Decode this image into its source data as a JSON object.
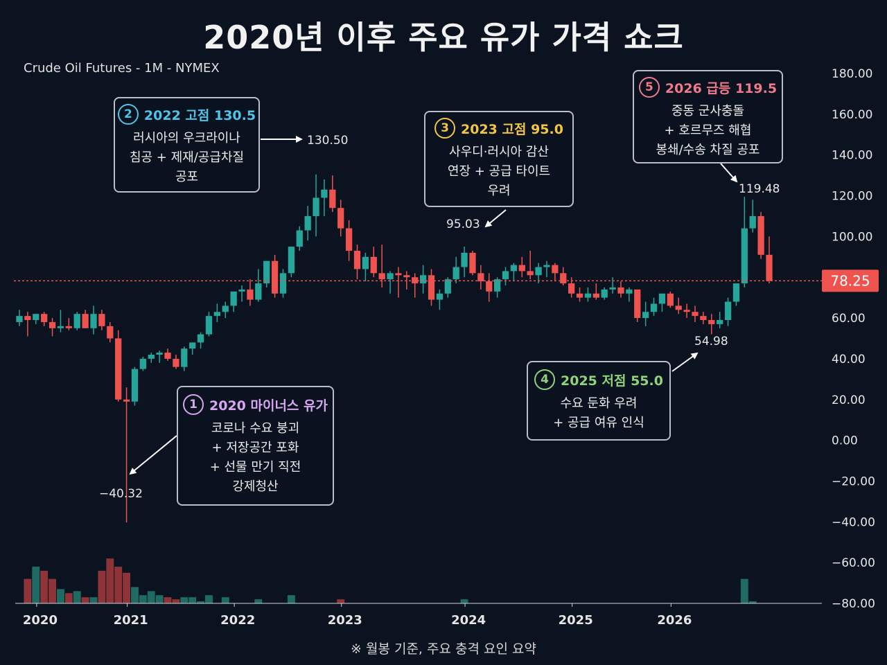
{
  "title": "2020년 이후 주요 유가 가격 쇼크",
  "subtitle": "Crude Oil Futures - 1M - NYMEX",
  "footer": "※ 월봉 기준, 주요 충격 요인 요약",
  "colors": {
    "background": "#0b1220",
    "up": "#26a69a",
    "down": "#ef5350",
    "vol_up": "#1f6b64",
    "vol_down": "#8e3337",
    "last_price": "#ef5350"
  },
  "annotations": [
    {
      "num": "1",
      "title": "2020 마이너스 유가",
      "color": "#d7a6f0",
      "lines": [
        "코로나 수요 붕괴",
        "+ 저장공간 포화",
        "+ 선물 만기 직전",
        "강제청산"
      ]
    },
    {
      "num": "2",
      "title": "2022 고점 130.5",
      "color": "#4fc3e8",
      "lines": [
        "러시아의 우크라이나",
        "침공 + 제재/공급차질",
        "공포"
      ]
    },
    {
      "num": "3",
      "title": "2023 고점 95.0",
      "color": "#f4c542",
      "lines": [
        "사우디·러시아 감산",
        "연장 + 공급 타이트",
        "우려"
      ]
    },
    {
      "num": "4",
      "title": "2025 저점 55.0",
      "color": "#8fd47a",
      "lines": [
        "수요 둔화 우려",
        "+ 공급 여유 인식"
      ]
    },
    {
      "num": "5",
      "title": "2026 급등 119.5",
      "color": "#f07a8a",
      "lines": [
        "중동 군사충돌",
        "+ 호르무즈 해협",
        "봉쇄/수송 차질 공포"
      ]
    }
  ],
  "chart_data": {
    "type": "candlestick",
    "title": "2020년 이후 주요 유가 가격 쇼크",
    "subtitle": "Crude Oil Futures - 1M - NYMEX",
    "x_axis_labels": [
      "2020",
      "2021",
      "2022",
      "2023",
      "2024",
      "2025",
      "2026"
    ],
    "y_ticks": [
      "180.00",
      "160.00",
      "140.00",
      "120.00",
      "100.00",
      "80.00",
      "60.00",
      "40.00",
      "20.00",
      "0.00",
      "−20.00",
      "−40.00",
      "−60.00",
      "−80.00"
    ],
    "ylim": [
      -80,
      180
    ],
    "last_price": "78.25",
    "price_labels": [
      "130.50",
      "95.03",
      "119.48",
      "54.98",
      "−40.32"
    ],
    "grid": false,
    "candles": [
      {
        "o": 58,
        "h": 64,
        "l": 56,
        "c": 61
      },
      {
        "o": 61,
        "h": 63,
        "l": 51,
        "c": 59
      },
      {
        "o": 59,
        "h": 62,
        "l": 57,
        "c": 62
      },
      {
        "o": 62,
        "h": 63,
        "l": 56,
        "c": 58
      },
      {
        "o": 58,
        "h": 60,
        "l": 51,
        "c": 55
      },
      {
        "o": 55,
        "h": 64,
        "l": 53,
        "c": 56
      },
      {
        "o": 56,
        "h": 60,
        "l": 54,
        "c": 55
      },
      {
        "o": 55,
        "h": 63,
        "l": 54,
        "c": 62
      },
      {
        "o": 62,
        "h": 64,
        "l": 55,
        "c": 55
      },
      {
        "o": 55,
        "h": 66,
        "l": 52,
        "c": 62
      },
      {
        "o": 62,
        "h": 64,
        "l": 54,
        "c": 56
      },
      {
        "o": 56,
        "h": 58,
        "l": 48,
        "c": 50
      },
      {
        "o": 50,
        "h": 54,
        "l": 19,
        "c": 20
      },
      {
        "o": 20,
        "h": 26,
        "l": -40.32,
        "c": 19
      },
      {
        "o": 19,
        "h": 36,
        "l": 17,
        "c": 35
      },
      {
        "o": 35,
        "h": 41,
        "l": 34,
        "c": 40
      },
      {
        "o": 40,
        "h": 43,
        "l": 38,
        "c": 42
      },
      {
        "o": 42,
        "h": 44,
        "l": 38,
        "c": 43
      },
      {
        "o": 43,
        "h": 45,
        "l": 39,
        "c": 40
      },
      {
        "o": 40,
        "h": 42,
        "l": 35,
        "c": 36
      },
      {
        "o": 36,
        "h": 46,
        "l": 34,
        "c": 45
      },
      {
        "o": 45,
        "h": 48,
        "l": 42,
        "c": 48
      },
      {
        "o": 48,
        "h": 53,
        "l": 45,
        "c": 52
      },
      {
        "o": 52,
        "h": 63,
        "l": 51,
        "c": 61
      },
      {
        "o": 61,
        "h": 67,
        "l": 58,
        "c": 63
      },
      {
        "o": 63,
        "h": 68,
        "l": 60,
        "c": 66
      },
      {
        "o": 66,
        "h": 73,
        "l": 63,
        "c": 73
      },
      {
        "o": 73,
        "h": 76,
        "l": 68,
        "c": 74
      },
      {
        "o": 74,
        "h": 79,
        "l": 66,
        "c": 69
      },
      {
        "o": 69,
        "h": 84,
        "l": 68,
        "c": 77
      },
      {
        "o": 77,
        "h": 88,
        "l": 75,
        "c": 88
      },
      {
        "o": 88,
        "h": 91,
        "l": 70,
        "c": 72
      },
      {
        "o": 72,
        "h": 84,
        "l": 70,
        "c": 82
      },
      {
        "o": 82,
        "h": 95,
        "l": 80,
        "c": 95
      },
      {
        "o": 95,
        "h": 105,
        "l": 93,
        "c": 103
      },
      {
        "o": 103,
        "h": 115,
        "l": 98,
        "c": 110
      },
      {
        "o": 110,
        "h": 130.5,
        "l": 100,
        "c": 119
      },
      {
        "o": 119,
        "h": 128,
        "l": 110,
        "c": 123
      },
      {
        "o": 123,
        "h": 130,
        "l": 112,
        "c": 114
      },
      {
        "o": 114,
        "h": 118,
        "l": 100,
        "c": 104
      },
      {
        "o": 104,
        "h": 108,
        "l": 88,
        "c": 93
      },
      {
        "o": 93,
        "h": 96,
        "l": 79,
        "c": 84
      },
      {
        "o": 84,
        "h": 92,
        "l": 78,
        "c": 90
      },
      {
        "o": 90,
        "h": 95,
        "l": 80,
        "c": 82
      },
      {
        "o": 82,
        "h": 96,
        "l": 75,
        "c": 79
      },
      {
        "o": 79,
        "h": 83,
        "l": 72,
        "c": 82
      },
      {
        "o": 82,
        "h": 85,
        "l": 70,
        "c": 81
      },
      {
        "o": 81,
        "h": 83,
        "l": 74,
        "c": 80
      },
      {
        "o": 80,
        "h": 82,
        "l": 70,
        "c": 77
      },
      {
        "o": 77,
        "h": 86,
        "l": 72,
        "c": 81
      },
      {
        "o": 81,
        "h": 84,
        "l": 66,
        "c": 69
      },
      {
        "o": 69,
        "h": 74,
        "l": 64,
        "c": 72
      },
      {
        "o": 72,
        "h": 80,
        "l": 70,
        "c": 79
      },
      {
        "o": 79,
        "h": 90,
        "l": 77,
        "c": 85
      },
      {
        "o": 85,
        "h": 95.03,
        "l": 80,
        "c": 92
      },
      {
        "o": 92,
        "h": 93,
        "l": 81,
        "c": 82
      },
      {
        "o": 82,
        "h": 86,
        "l": 74,
        "c": 78
      },
      {
        "o": 78,
        "h": 82,
        "l": 68,
        "c": 73
      },
      {
        "o": 73,
        "h": 80,
        "l": 70,
        "c": 79
      },
      {
        "o": 79,
        "h": 85,
        "l": 76,
        "c": 83
      },
      {
        "o": 83,
        "h": 87,
        "l": 78,
        "c": 86
      },
      {
        "o": 86,
        "h": 90,
        "l": 80,
        "c": 83
      },
      {
        "o": 83,
        "h": 93,
        "l": 79,
        "c": 81
      },
      {
        "o": 81,
        "h": 87,
        "l": 77,
        "c": 85
      },
      {
        "o": 85,
        "h": 88,
        "l": 80,
        "c": 86
      },
      {
        "o": 86,
        "h": 87,
        "l": 78,
        "c": 82
      },
      {
        "o": 82,
        "h": 85,
        "l": 76,
        "c": 77
      },
      {
        "o": 77,
        "h": 80,
        "l": 70,
        "c": 72
      },
      {
        "o": 72,
        "h": 75,
        "l": 68,
        "c": 70
      },
      {
        "o": 70,
        "h": 75,
        "l": 68,
        "c": 72
      },
      {
        "o": 72,
        "h": 77,
        "l": 69,
        "c": 70
      },
      {
        "o": 70,
        "h": 75,
        "l": 69,
        "c": 74
      },
      {
        "o": 74,
        "h": 80,
        "l": 72,
        "c": 75
      },
      {
        "o": 75,
        "h": 78,
        "l": 70,
        "c": 72
      },
      {
        "o": 72,
        "h": 75,
        "l": 68,
        "c": 74
      },
      {
        "o": 74,
        "h": 74,
        "l": 58,
        "c": 60
      },
      {
        "o": 60,
        "h": 68,
        "l": 56,
        "c": 63
      },
      {
        "o": 63,
        "h": 70,
        "l": 61,
        "c": 67
      },
      {
        "o": 67,
        "h": 71,
        "l": 63,
        "c": 72
      },
      {
        "o": 72,
        "h": 73,
        "l": 65,
        "c": 66
      },
      {
        "o": 66,
        "h": 70,
        "l": 62,
        "c": 64
      },
      {
        "o": 64,
        "h": 67,
        "l": 60,
        "c": 63
      },
      {
        "o": 63,
        "h": 66,
        "l": 58,
        "c": 61
      },
      {
        "o": 61,
        "h": 63,
        "l": 57,
        "c": 59
      },
      {
        "o": 59,
        "h": 62,
        "l": 52,
        "c": 57
      },
      {
        "o": 57,
        "h": 63,
        "l": 54.98,
        "c": 59
      },
      {
        "o": 59,
        "h": 70,
        "l": 56,
        "c": 68
      },
      {
        "o": 68,
        "h": 76,
        "l": 66,
        "c": 77
      },
      {
        "o": 77,
        "h": 119.48,
        "l": 75,
        "c": 104
      },
      {
        "o": 104,
        "h": 118,
        "l": 102,
        "c": 110
      },
      {
        "o": 110,
        "h": 112,
        "l": 89,
        "c": 91
      },
      {
        "o": 91,
        "h": 100,
        "l": 77,
        "c": 78.25
      }
    ],
    "volume": [
      58,
      72,
      78,
      76,
      72,
      67,
      65,
      66,
      63,
      63,
      76,
      82,
      78,
      75,
      68,
      64,
      66,
      64,
      63,
      62,
      63,
      63,
      61,
      64,
      60,
      63,
      59,
      58,
      55,
      62,
      58,
      57,
      56,
      64,
      60,
      60,
      58,
      60,
      58,
      62,
      56,
      52,
      55,
      54,
      54,
      55,
      55,
      54,
      57,
      53,
      52,
      58,
      56,
      57,
      62,
      57,
      55,
      54,
      53,
      56,
      55,
      52,
      58,
      54,
      55,
      58,
      56,
      60,
      57,
      56,
      51,
      49,
      56,
      55,
      55,
      54,
      55,
      55,
      55,
      54,
      58,
      50,
      55,
      56,
      52,
      51,
      53,
      58,
      72,
      61,
      47,
      44
    ]
  }
}
